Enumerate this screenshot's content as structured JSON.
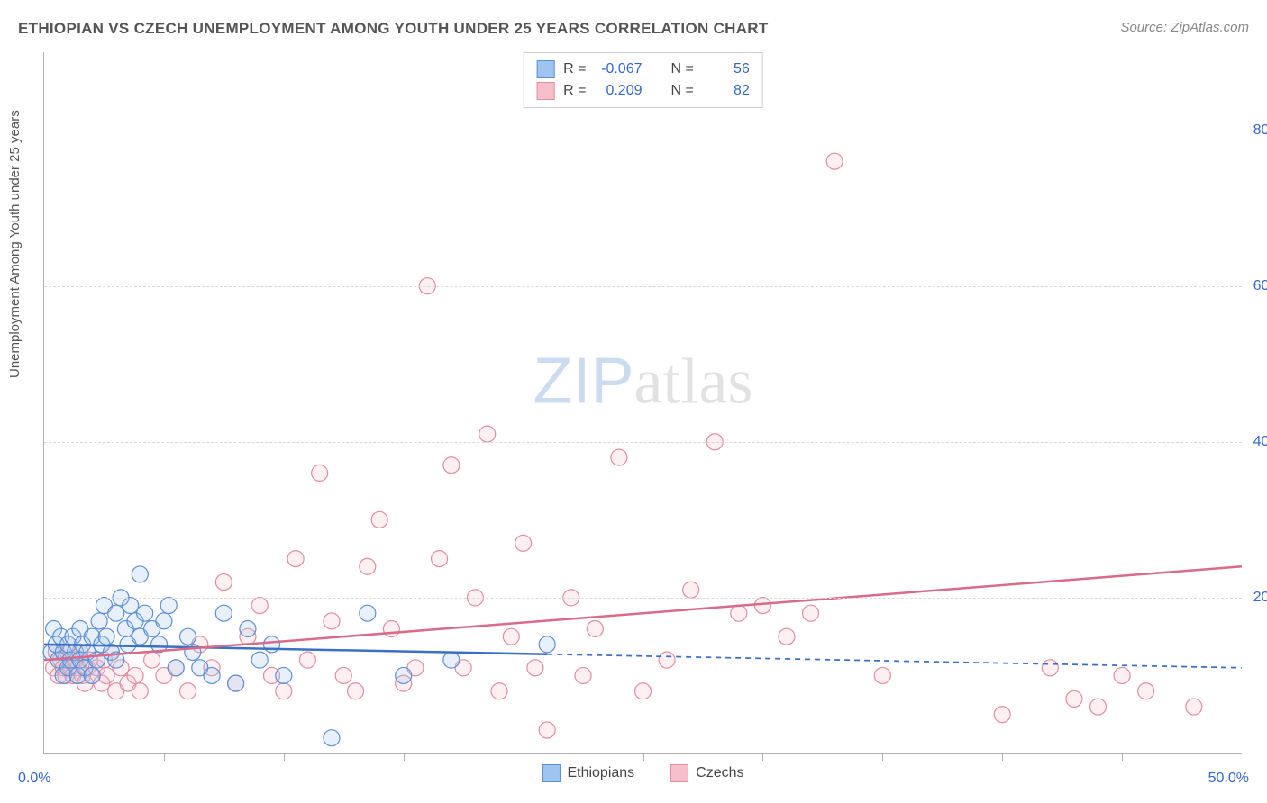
{
  "title": "ETHIOPIAN VS CZECH UNEMPLOYMENT AMONG YOUTH UNDER 25 YEARS CORRELATION CHART",
  "source": "Source: ZipAtlas.com",
  "y_axis_label": "Unemployment Among Youth under 25 years",
  "origin_label": "0.0%",
  "x_end_label": "50.0%",
  "watermark": {
    "zip": "ZIP",
    "atlas": "atlas"
  },
  "chart": {
    "type": "scatter",
    "xlim": [
      0,
      50
    ],
    "ylim": [
      0,
      90
    ],
    "y_ticks": [
      20,
      40,
      60,
      80
    ],
    "y_tick_labels": [
      "20.0%",
      "40.0%",
      "60.0%",
      "80.0%"
    ],
    "x_ticks": [
      5,
      10,
      15,
      20,
      25,
      30,
      35,
      40,
      45
    ],
    "background_color": "#ffffff",
    "grid_color": "#d8d8d8",
    "axis_color": "#b0b0b0",
    "marker_radius": 9,
    "marker_stroke_width": 1.2,
    "marker_fill_opacity": 0.25,
    "series": {
      "ethiopians": {
        "label": "Ethiopians",
        "fill": "#9fc4ef",
        "stroke": "#5b8fd6",
        "r_label": "R = ",
        "r_value": "-0.067",
        "n_label": "N = ",
        "n_value": "56",
        "trend": {
          "x1": 0,
          "y1": 14,
          "x2": 50,
          "y2": 11,
          "solid_until_x": 21,
          "color": "#3b6fc4",
          "width": 2.5
        },
        "points": [
          [
            0.3,
            13
          ],
          [
            0.4,
            16
          ],
          [
            0.5,
            14
          ],
          [
            0.6,
            12
          ],
          [
            0.7,
            15
          ],
          [
            0.8,
            13
          ],
          [
            0.8,
            10
          ],
          [
            1.0,
            14
          ],
          [
            1.0,
            11
          ],
          [
            1.1,
            12
          ],
          [
            1.2,
            15
          ],
          [
            1.3,
            13
          ],
          [
            1.4,
            10
          ],
          [
            1.5,
            16
          ],
          [
            1.5,
            12
          ],
          [
            1.6,
            14
          ],
          [
            1.7,
            11
          ],
          [
            1.8,
            13
          ],
          [
            2.0,
            15
          ],
          [
            2.0,
            10
          ],
          [
            2.2,
            12
          ],
          [
            2.3,
            17
          ],
          [
            2.4,
            14
          ],
          [
            2.5,
            19
          ],
          [
            2.6,
            15
          ],
          [
            2.8,
            13
          ],
          [
            3.0,
            18
          ],
          [
            3.0,
            12
          ],
          [
            3.2,
            20
          ],
          [
            3.4,
            16
          ],
          [
            3.5,
            14
          ],
          [
            3.6,
            19
          ],
          [
            3.8,
            17
          ],
          [
            4.0,
            15
          ],
          [
            4.0,
            23
          ],
          [
            4.2,
            18
          ],
          [
            4.5,
            16
          ],
          [
            4.8,
            14
          ],
          [
            5.0,
            17
          ],
          [
            5.2,
            19
          ],
          [
            5.5,
            11
          ],
          [
            6.0,
            15
          ],
          [
            6.2,
            13
          ],
          [
            6.5,
            11
          ],
          [
            7.0,
            10
          ],
          [
            7.5,
            18
          ],
          [
            8.0,
            9
          ],
          [
            8.5,
            16
          ],
          [
            9.0,
            12
          ],
          [
            9.5,
            14
          ],
          [
            10.0,
            10
          ],
          [
            12.0,
            2
          ],
          [
            13.5,
            18
          ],
          [
            15.0,
            10
          ],
          [
            17.0,
            12
          ],
          [
            21.0,
            14
          ]
        ]
      },
      "czechs": {
        "label": "Czechs",
        "fill": "#f6bfca",
        "stroke": "#e08da0",
        "r_label": "R = ",
        "r_value": "0.209",
        "n_label": "N = ",
        "n_value": "82",
        "trend": {
          "x1": 0,
          "y1": 12,
          "x2": 50,
          "y2": 24,
          "solid_until_x": 50,
          "color": "#d96b8a",
          "width": 2.5
        },
        "points": [
          [
            0.4,
            11
          ],
          [
            0.5,
            13
          ],
          [
            0.6,
            10
          ],
          [
            0.7,
            12
          ],
          [
            0.8,
            11
          ],
          [
            0.9,
            10
          ],
          [
            1.0,
            13
          ],
          [
            1.1,
            11
          ],
          [
            1.2,
            10
          ],
          [
            1.3,
            12
          ],
          [
            1.4,
            11
          ],
          [
            1.5,
            13
          ],
          [
            1.6,
            10
          ],
          [
            1.7,
            9
          ],
          [
            1.8,
            11
          ],
          [
            1.9,
            12
          ],
          [
            2.0,
            10
          ],
          [
            2.2,
            11
          ],
          [
            2.4,
            9
          ],
          [
            2.5,
            12
          ],
          [
            2.6,
            10
          ],
          [
            2.8,
            13
          ],
          [
            3.0,
            8
          ],
          [
            3.2,
            11
          ],
          [
            3.5,
            9
          ],
          [
            3.8,
            10
          ],
          [
            4.0,
            8
          ],
          [
            4.5,
            12
          ],
          [
            5.0,
            10
          ],
          [
            5.5,
            11
          ],
          [
            6.0,
            8
          ],
          [
            6.5,
            14
          ],
          [
            7.0,
            11
          ],
          [
            7.5,
            22
          ],
          [
            8.0,
            9
          ],
          [
            8.5,
            15
          ],
          [
            9.0,
            19
          ],
          [
            9.5,
            10
          ],
          [
            10.0,
            8
          ],
          [
            10.5,
            25
          ],
          [
            11.0,
            12
          ],
          [
            11.5,
            36
          ],
          [
            12.0,
            17
          ],
          [
            12.5,
            10
          ],
          [
            13.0,
            8
          ],
          [
            13.5,
            24
          ],
          [
            14.0,
            30
          ],
          [
            14.5,
            16
          ],
          [
            15.0,
            9
          ],
          [
            15.5,
            11
          ],
          [
            16.0,
            60
          ],
          [
            16.5,
            25
          ],
          [
            17.0,
            37
          ],
          [
            17.5,
            11
          ],
          [
            18.0,
            20
          ],
          [
            18.5,
            41
          ],
          [
            19.0,
            8
          ],
          [
            19.5,
            15
          ],
          [
            20.0,
            27
          ],
          [
            20.5,
            11
          ],
          [
            21.0,
            3
          ],
          [
            22.0,
            20
          ],
          [
            22.5,
            10
          ],
          [
            23.0,
            16
          ],
          [
            24.0,
            38
          ],
          [
            25.0,
            8
          ],
          [
            26.0,
            12
          ],
          [
            27.0,
            21
          ],
          [
            28.0,
            40
          ],
          [
            29.0,
            18
          ],
          [
            30.0,
            19
          ],
          [
            31.0,
            15
          ],
          [
            32.0,
            18
          ],
          [
            33.0,
            76
          ],
          [
            35.0,
            10
          ],
          [
            40.0,
            5
          ],
          [
            42.0,
            11
          ],
          [
            43.0,
            7
          ],
          [
            44.0,
            6
          ],
          [
            45.0,
            10
          ],
          [
            46.0,
            8
          ],
          [
            48.0,
            6
          ]
        ]
      }
    }
  },
  "legend": {
    "series1": "Ethiopians",
    "series2": "Czechs"
  }
}
